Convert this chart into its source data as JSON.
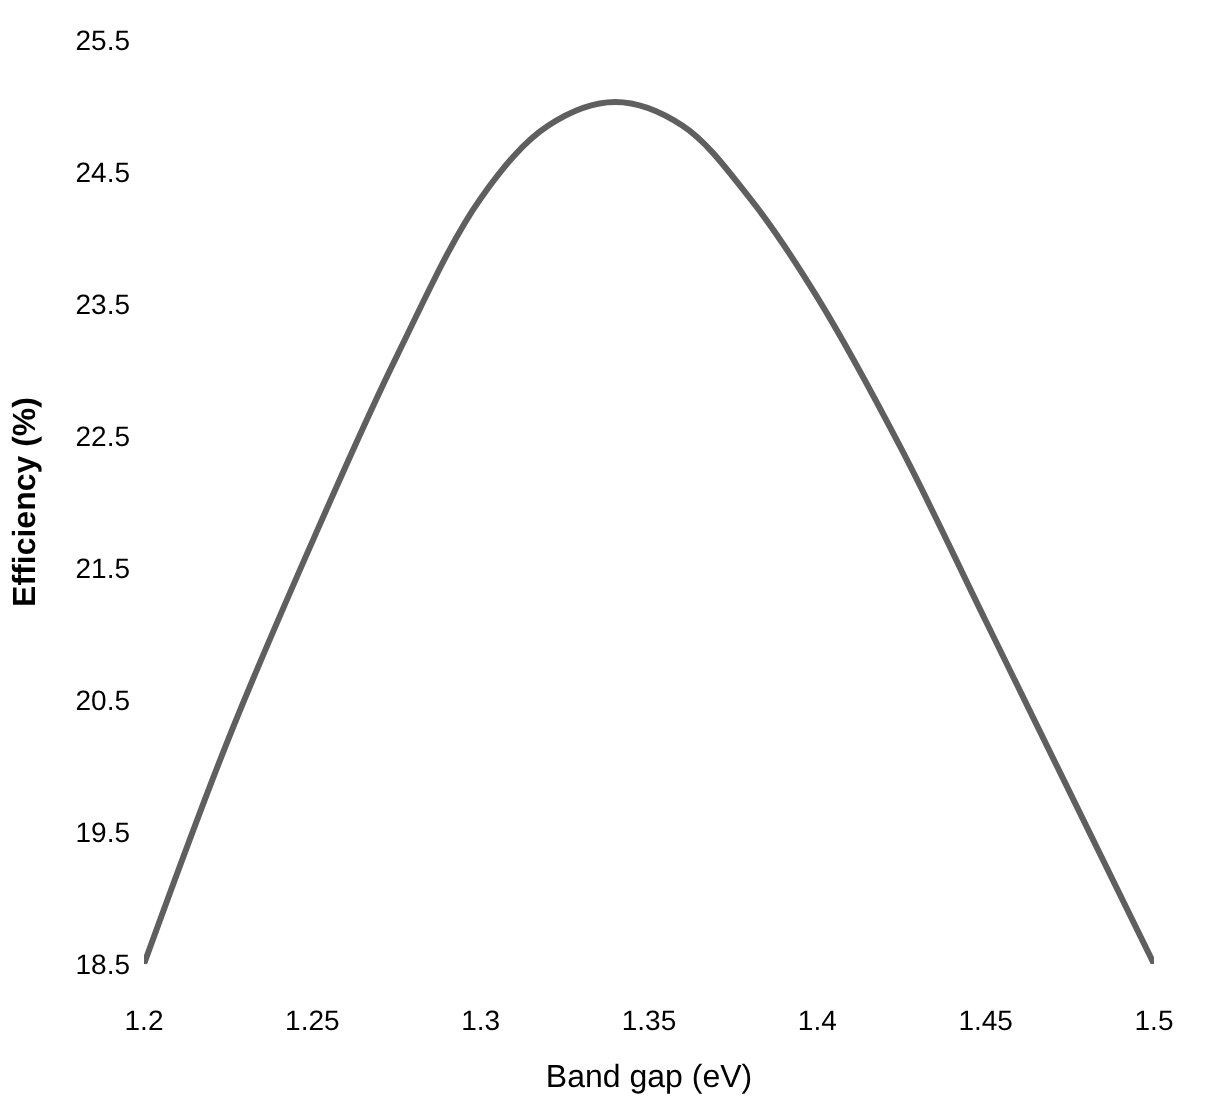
{
  "chart_data": {
    "type": "line",
    "xlabel": "Band gap (eV)",
    "ylabel": "Efficiency (%)",
    "x": [
      1.2,
      1.225,
      1.25,
      1.275,
      1.3,
      1.32,
      1.34,
      1.36,
      1.38,
      1.4,
      1.425,
      1.45,
      1.475,
      1.5
    ],
    "series": [
      {
        "color": "#5f5f5f",
        "values": [
          18.5,
          20.2,
          21.7,
          23.1,
          24.3,
          24.85,
          25.03,
          24.85,
          24.3,
          23.55,
          22.4,
          21.1,
          19.8,
          18.5
        ]
      }
    ],
    "xlim": [
      1.2,
      1.5
    ],
    "xticks": [
      1.2,
      1.25,
      1.3,
      1.35,
      1.4,
      1.45,
      1.5
    ],
    "ylim": [
      18.5,
      25.5
    ],
    "yticks": [
      18.5,
      19.5,
      20.5,
      21.5,
      22.5,
      23.5,
      24.5,
      25.5
    ],
    "legend": false,
    "marker": "none",
    "line_style": "solid"
  }
}
